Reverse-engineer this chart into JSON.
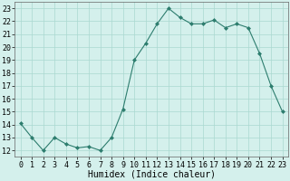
{
  "x": [
    0,
    1,
    2,
    3,
    4,
    5,
    6,
    7,
    8,
    9,
    10,
    11,
    12,
    13,
    14,
    15,
    16,
    17,
    18,
    19,
    20,
    21,
    22,
    23
  ],
  "y": [
    14.1,
    13.0,
    12.0,
    13.0,
    12.5,
    12.2,
    12.3,
    12.0,
    13.0,
    15.2,
    19.0,
    20.3,
    21.8,
    23.0,
    22.3,
    21.8,
    21.8,
    22.1,
    21.5,
    21.8,
    21.5,
    19.5,
    17.0,
    15.0
  ],
  "line_color": "#2d7d6e",
  "marker": "D",
  "marker_size": 2.0,
  "bg_color": "#d4f0ec",
  "grid_color": "#aad8d0",
  "xlabel": "Humidex (Indice chaleur)",
  "xlabel_fontsize": 7,
  "tick_fontsize": 6,
  "ylim": [
    11.5,
    23.5
  ],
  "xlim": [
    -0.5,
    23.5
  ],
  "yticks": [
    12,
    13,
    14,
    15,
    16,
    17,
    18,
    19,
    20,
    21,
    22,
    23
  ],
  "xticks": [
    0,
    1,
    2,
    3,
    4,
    5,
    6,
    7,
    8,
    9,
    10,
    11,
    12,
    13,
    14,
    15,
    16,
    17,
    18,
    19,
    20,
    21,
    22,
    23
  ]
}
